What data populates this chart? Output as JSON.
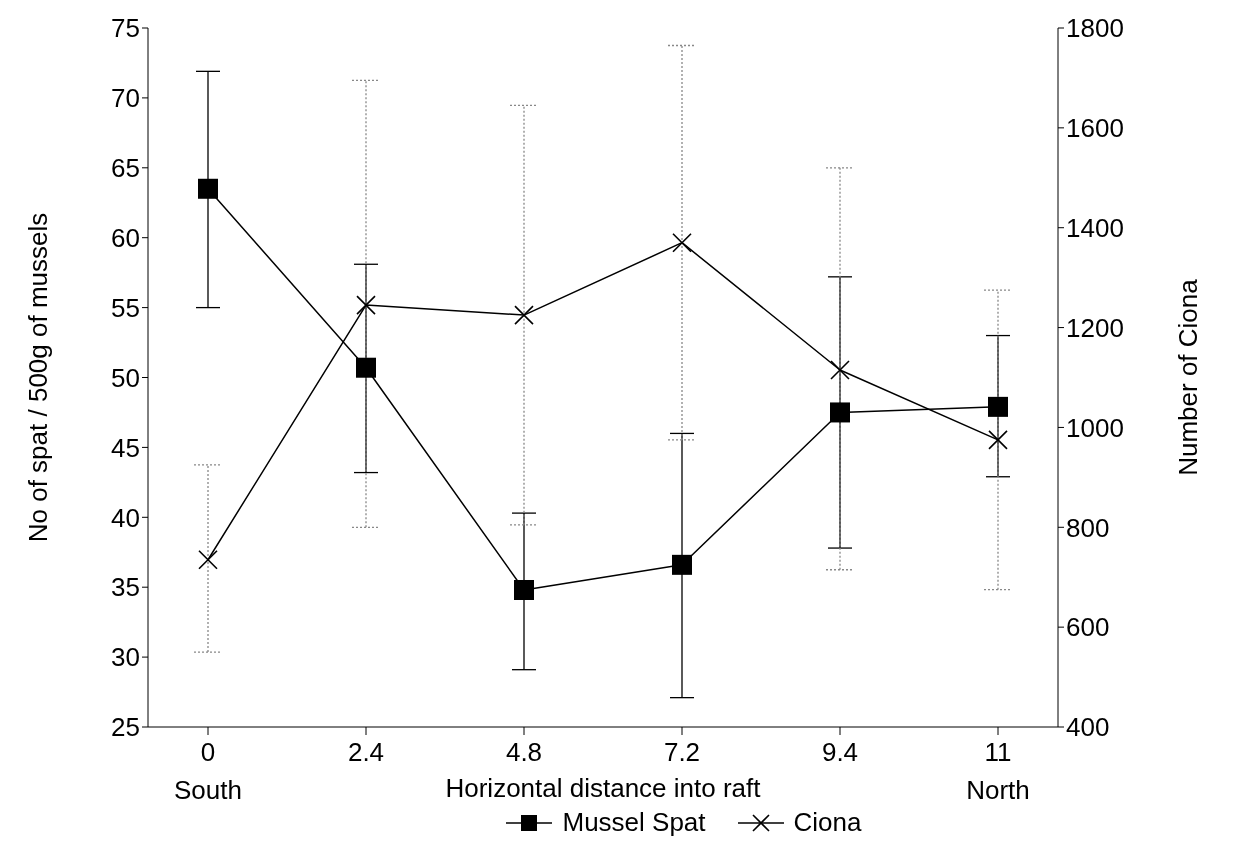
{
  "chart_data": {
    "type": "line",
    "xlabel": "Horizontal distance into raft",
    "ylabel": "No of spat / 500g of mussels",
    "y2label": "Number of Ciona",
    "categories": [
      "0",
      "2.4",
      "4.8",
      "7.2",
      "9.4",
      "11"
    ],
    "series": [
      {
        "name": "Mussel Spat",
        "color": "#000000",
        "marker": "square",
        "values": [
          63.5,
          50.7,
          34.8,
          36.6,
          47.5,
          47.9
        ],
        "errors": [
          [
            55.0,
            71.9
          ],
          [
            43.2,
            58.1
          ],
          [
            29.1,
            40.3
          ],
          [
            27.1,
            46.0
          ],
          [
            37.8,
            57.2
          ],
          [
            42.9,
            53.0
          ]
        ]
      },
      {
        "name": "Ciona",
        "color": "#000000",
        "marker": "cross",
        "axis": "y2",
        "values": [
          735,
          1245,
          1225,
          1370,
          1115,
          975
        ],
        "errors": [
          [
            550,
            925
          ],
          [
            800,
            1695
          ],
          [
            805,
            1645
          ],
          [
            975,
            1765
          ],
          [
            715,
            1520
          ],
          [
            675,
            1275
          ]
        ]
      }
    ],
    "ylim": [
      25,
      75
    ],
    "yticks": [
      25,
      30,
      35,
      40,
      45,
      50,
      55,
      60,
      65,
      70,
      75
    ],
    "y2lim": [
      400,
      1800
    ],
    "y2ticks": [
      400,
      600,
      800,
      1000,
      1200,
      1400,
      1600,
      1800
    ],
    "annotations": [
      "South",
      "North"
    ],
    "grid": false,
    "legend": "bottom",
    "line_style": "solid"
  }
}
